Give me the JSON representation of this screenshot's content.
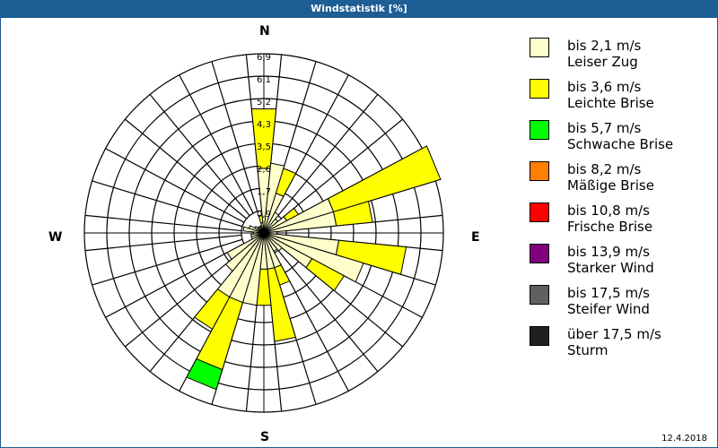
{
  "header": {
    "title": "Windstatistik [%]"
  },
  "footer": {
    "date": "12.4.2018"
  },
  "directions": {
    "n": "N",
    "e": "E",
    "s": "S",
    "w": "W"
  },
  "legend": [
    {
      "line1": "bis 2,1 m/s",
      "line2": "Leiser Zug",
      "color": "#ffffcc"
    },
    {
      "line1": "bis 3,6 m/s",
      "line2": "Leichte Brise",
      "color": "#ffff00"
    },
    {
      "line1": "bis 5,7 m/s",
      "line2": "Schwache Brise",
      "color": "#00ff00"
    },
    {
      "line1": "bis 8,2 m/s",
      "line2": "Mäßige Brise",
      "color": "#ff8000"
    },
    {
      "line1": "bis 10,8 m/s",
      "line2": "Frische Brise",
      "color": "#ff0000"
    },
    {
      "line1": "bis 13,9 m/s",
      "line2": "Starker Wind",
      "color": "#800080"
    },
    {
      "line1": "bis 17,5 m/s",
      "line2": "Steifer Wind",
      "color": "#606060"
    },
    {
      "line1": "über 17,5 m/s",
      "line2": "Sturm",
      "color": "#202020"
    }
  ],
  "chart_data": {
    "type": "polar-stacked-bar",
    "title": "Windstatistik [%]",
    "ring_labels": [
      "0,9",
      "1,7",
      "2,6",
      "3,5",
      "4,3",
      "5,2",
      "6,1",
      "6,9"
    ],
    "rmax": 6.9,
    "sectors": 32,
    "series_names": [
      "bis 2,1 m/s",
      "bis 3,6 m/s",
      "bis 5,7 m/s",
      "bis 8,2 m/s",
      "bis 10,8 m/s",
      "bis 13,9 m/s",
      "bis 17,5 m/s",
      "über 17,5 m/s"
    ],
    "directions_deg": [
      0,
      11.25,
      22.5,
      33.75,
      45,
      56.25,
      67.5,
      78.75,
      90,
      101.25,
      112.5,
      123.75,
      135,
      146.25,
      157.5,
      168.75,
      180,
      191.25,
      202.5,
      213.75,
      225,
      236.25,
      247.5,
      258.75,
      270,
      281.25,
      292.5,
      303.75,
      315,
      326.25,
      337.5,
      348.75
    ],
    "values": [
      [
        2.5,
        2.3,
        0,
        0,
        0,
        0,
        0,
        0
      ],
      [
        2.7,
        0,
        0,
        0,
        0,
        0,
        0,
        0
      ],
      [
        1.6,
        1.0,
        0,
        0,
        0,
        0,
        0,
        0
      ],
      [
        0.9,
        0,
        0,
        0,
        0,
        0,
        0,
        0
      ],
      [
        0.7,
        0,
        0,
        0,
        0,
        0,
        0,
        0
      ],
      [
        1.0,
        0.5,
        0,
        0,
        0,
        0,
        0,
        0
      ],
      [
        2.8,
        4.3,
        0,
        0,
        0,
        0,
        0,
        0
      ],
      [
        2.8,
        1.4,
        0,
        0,
        0,
        0,
        0,
        0
      ],
      [
        0.5,
        0,
        0,
        0,
        0,
        0,
        0,
        0
      ],
      [
        2.9,
        2.6,
        0,
        0,
        0,
        0,
        0,
        0
      ],
      [
        4.0,
        0,
        0,
        0,
        0,
        0,
        0,
        0
      ],
      [
        2.1,
        1.4,
        0,
        0,
        0,
        0,
        0,
        0
      ],
      [
        0.9,
        0,
        0,
        0,
        0,
        0,
        0,
        0
      ],
      [
        0.8,
        0,
        0,
        0,
        0,
        0,
        0,
        0
      ],
      [
        1.4,
        0.7,
        0,
        0,
        0,
        0,
        0,
        0
      ],
      [
        1.4,
        2.8,
        0,
        0,
        0,
        0,
        0,
        0
      ],
      [
        1.4,
        1.4,
        0,
        0,
        0,
        0,
        0,
        0
      ],
      [
        2.8,
        0,
        0,
        0,
        0,
        0,
        0,
        0
      ],
      [
        2.8,
        2.7,
        0.8,
        0,
        0,
        0,
        0,
        0
      ],
      [
        2.8,
        1.4,
        0,
        0,
        0,
        0,
        0,
        0
      ],
      [
        1.9,
        0,
        0,
        0,
        0,
        0,
        0,
        0
      ],
      [
        1.6,
        0,
        0,
        0,
        0,
        0,
        0,
        0
      ],
      [
        0.5,
        0,
        0,
        0,
        0,
        0,
        0,
        0
      ],
      [
        0.5,
        0,
        0,
        0,
        0,
        0,
        0,
        0
      ],
      [
        0.4,
        0,
        0,
        0,
        0,
        0,
        0,
        0
      ],
      [
        0.8,
        0,
        0,
        0,
        0,
        0,
        0,
        0
      ],
      [
        0.6,
        0,
        0,
        0,
        0,
        0,
        0,
        0
      ],
      [
        0.4,
        0,
        0,
        0,
        0,
        0,
        0,
        0
      ],
      [
        0.3,
        0,
        0,
        0,
        0,
        0,
        0,
        0
      ],
      [
        0.3,
        0,
        0,
        0,
        0,
        0,
        0,
        0
      ],
      [
        0.3,
        0,
        0,
        0,
        0,
        0,
        0,
        0
      ],
      [
        0.4,
        0.3,
        0,
        0,
        0,
        0,
        0,
        0
      ]
    ]
  }
}
